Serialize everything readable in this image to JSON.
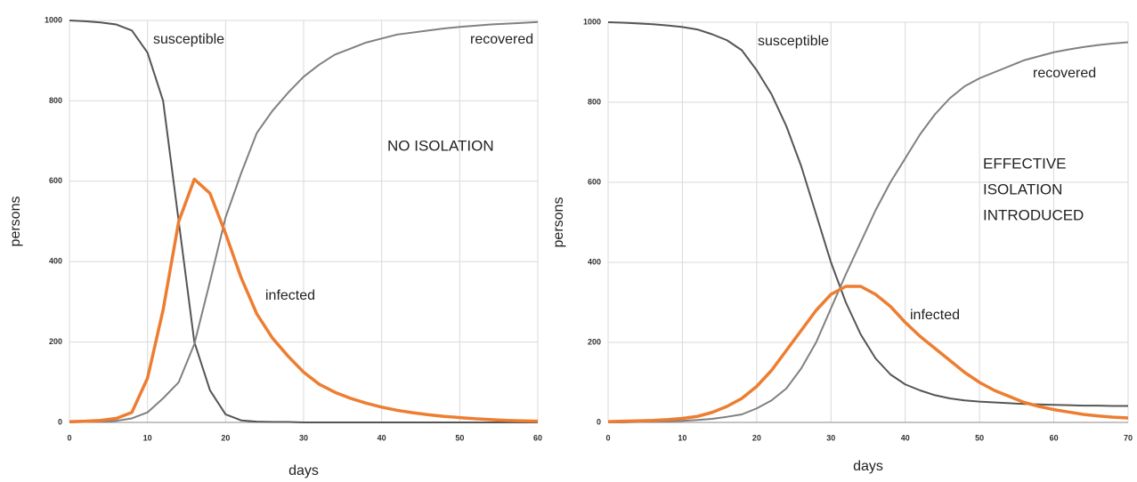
{
  "chart_data": [
    {
      "type": "line",
      "x_label": "days",
      "y_label": "persons",
      "annotation": [
        "NO ISOLATION"
      ],
      "x": [
        0,
        2,
        4,
        6,
        8,
        10,
        12,
        14,
        16,
        18,
        20,
        22,
        24,
        26,
        28,
        30,
        32,
        34,
        36,
        38,
        40,
        42,
        44,
        46,
        48,
        50,
        52,
        54,
        56,
        58,
        60
      ],
      "series": [
        {
          "name": "susceptible",
          "color": "#555555",
          "values": [
            1000,
            998,
            995,
            990,
            975,
            920,
            800,
            500,
            200,
            80,
            20,
            5,
            2,
            1,
            1,
            0,
            0,
            0,
            0,
            0,
            0,
            0,
            0,
            0,
            0,
            0,
            0,
            0,
            0,
            0,
            0
          ]
        },
        {
          "name": "recovered",
          "color": "#808080",
          "values": [
            0,
            1,
            2,
            4,
            10,
            25,
            60,
            100,
            195,
            350,
            510,
            620,
            720,
            775,
            820,
            860,
            890,
            915,
            930,
            945,
            955,
            965,
            970,
            975,
            980,
            984,
            987,
            990,
            992,
            994,
            996
          ]
        },
        {
          "name": "infected",
          "color": "#ed7d31",
          "values": [
            2,
            3,
            5,
            10,
            25,
            110,
            280,
            500,
            605,
            570,
            470,
            360,
            270,
            210,
            165,
            125,
            95,
            75,
            60,
            48,
            38,
            30,
            24,
            19,
            15,
            12,
            9,
            7,
            5,
            4,
            3
          ]
        }
      ],
      "xlim": [
        0,
        60
      ],
      "ylim": [
        0,
        1000
      ],
      "xticks": [
        0,
        10,
        20,
        30,
        40,
        50,
        60
      ],
      "yticks": [
        0,
        200,
        400,
        600,
        800,
        1000
      ],
      "grid": true
    },
    {
      "type": "line",
      "x_label": "days",
      "y_label": "persons",
      "annotation": [
        "EFFECTIVE",
        "ISOLATION",
        "INTRODUCED"
      ],
      "x": [
        0,
        2,
        4,
        6,
        8,
        10,
        12,
        14,
        16,
        18,
        20,
        22,
        24,
        26,
        28,
        30,
        32,
        34,
        36,
        38,
        40,
        42,
        44,
        46,
        48,
        50,
        52,
        54,
        56,
        58,
        60,
        62,
        64,
        66,
        68,
        70
      ],
      "series": [
        {
          "name": "susceptible",
          "color": "#555555",
          "values": [
            1000,
            999,
            997,
            995,
            992,
            988,
            982,
            970,
            955,
            930,
            880,
            820,
            740,
            640,
            520,
            400,
            300,
            220,
            160,
            120,
            95,
            80,
            68,
            60,
            55,
            52,
            50,
            48,
            46,
            45,
            44,
            43,
            42,
            42,
            41,
            41
          ]
        },
        {
          "name": "recovered",
          "color": "#808080",
          "values": [
            0,
            0,
            1,
            2,
            3,
            4,
            6,
            9,
            14,
            20,
            35,
            55,
            85,
            135,
            200,
            285,
            370,
            450,
            530,
            600,
            660,
            720,
            770,
            810,
            840,
            860,
            875,
            890,
            905,
            915,
            925,
            932,
            938,
            943,
            947,
            950
          ]
        },
        {
          "name": "infected",
          "color": "#ed7d31",
          "values": [
            2,
            3,
            4,
            5,
            7,
            10,
            15,
            25,
            40,
            60,
            90,
            130,
            180,
            230,
            280,
            320,
            340,
            340,
            320,
            290,
            250,
            215,
            185,
            155,
            125,
            100,
            80,
            65,
            50,
            40,
            32,
            26,
            20,
            16,
            13,
            11
          ]
        }
      ],
      "xlim": [
        0,
        70
      ],
      "ylim": [
        0,
        1000
      ],
      "xticks": [
        0,
        10,
        20,
        30,
        40,
        50,
        60,
        70
      ],
      "yticks": [
        0,
        200,
        400,
        600,
        800,
        1000
      ],
      "grid": true
    }
  ]
}
